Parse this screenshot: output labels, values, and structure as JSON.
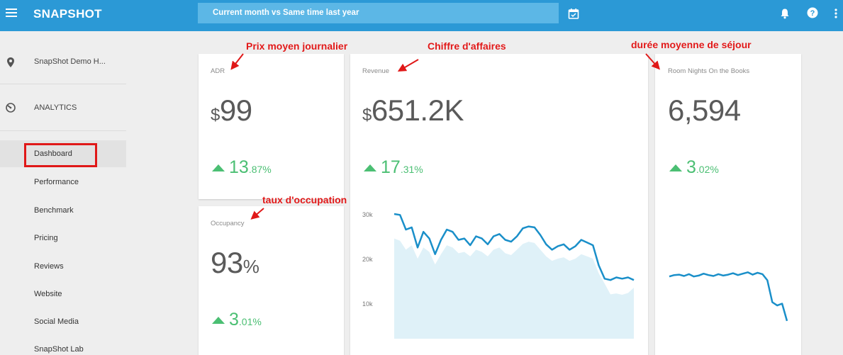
{
  "header": {
    "brand": "SNAPSHOT",
    "compare_label": "Current month vs Same time last year",
    "menu_icon": "menu-icon",
    "calendar_icon": "calendar-icon",
    "bell_icon": "bell-icon",
    "help_icon": "help-icon",
    "more_icon": "more-vert-icon"
  },
  "sidebar": {
    "property": "SnapShot Demo H...",
    "section": "ANALYTICS",
    "items": [
      {
        "label": "Dashboard",
        "active": true
      },
      {
        "label": "Performance"
      },
      {
        "label": "Benchmark"
      },
      {
        "label": "Pricing"
      },
      {
        "label": "Reviews"
      },
      {
        "label": "Website"
      },
      {
        "label": "Social Media"
      },
      {
        "label": "SnapShot Lab"
      }
    ]
  },
  "cards": {
    "adr": {
      "title": "ADR",
      "currency": "$",
      "value": "99",
      "delta_int": "13",
      "delta_dec": ".87%"
    },
    "revenue": {
      "title": "Revenue",
      "currency": "$",
      "value": "651.2K",
      "delta_int": "17",
      "delta_dec": ".31%"
    },
    "room_nights": {
      "title": "Room Nights On the Books",
      "value": "6,594",
      "delta_int": "3",
      "delta_dec": ".02%"
    },
    "occupancy": {
      "title": "Occupancy",
      "value": "93",
      "unit": "%",
      "delta_int": "3",
      "delta_dec": ".01%"
    }
  },
  "annotations": {
    "adr": "Prix moyen journalier",
    "revenue": "Chiffre d'affaires",
    "room_nights": "durée moyenne de séjour",
    "occupancy": "taux d'occupation"
  },
  "colors": {
    "topbar": "#2b99d6",
    "accent_green": "#4bbf73",
    "line": "#1a8fc9",
    "area": "#dff1f8",
    "annotation_red": "#e01818"
  },
  "chart_data": [
    {
      "type": "line",
      "name": "revenue-trend",
      "yticks": [
        "30k",
        "20k",
        "10k"
      ],
      "ylim": [
        0,
        32
      ],
      "series": [
        {
          "values": [
            30,
            29.8,
            26.5,
            27,
            22.5,
            26,
            24.5,
            21,
            24.2,
            26.5,
            26,
            24.2,
            24.5,
            23,
            25,
            24.5,
            23.2,
            25,
            25.5,
            24.2,
            23.8,
            25,
            26.8,
            27.2,
            27,
            25.3,
            23.2,
            22,
            22.8,
            23.2,
            22,
            22.8,
            24.2,
            23.6,
            23,
            18.5,
            15.5,
            15.2,
            15.8,
            15.5,
            15.8,
            15.2
          ]
        },
        {
          "values": [
            24.5,
            24,
            22,
            23,
            20,
            22.5,
            21.5,
            18.7,
            21,
            23,
            22.5,
            21.2,
            21.5,
            20.5,
            22,
            21.5,
            20.5,
            22,
            22.5,
            21.2,
            20.8,
            22,
            23.3,
            23.8,
            23.5,
            22,
            20.5,
            19.5,
            20,
            20.3,
            19.5,
            20,
            21,
            20.5,
            20,
            16.7,
            14.4,
            12,
            12.2,
            11.9,
            12.3,
            13.5
          ]
        }
      ]
    },
    {
      "type": "line",
      "name": "room-nights-trend",
      "series": [
        {
          "values": [
            13,
            13.3,
            13.4,
            13.1,
            13.5,
            13,
            13.2,
            13.6,
            13.3,
            13.1,
            13.5,
            13.2,
            13.4,
            13.7,
            13.3,
            13.6,
            13.9,
            13.4,
            13.8,
            13.5,
            12.2,
            7.5,
            6.8,
            7.2,
            3.5
          ]
        }
      ]
    }
  ]
}
